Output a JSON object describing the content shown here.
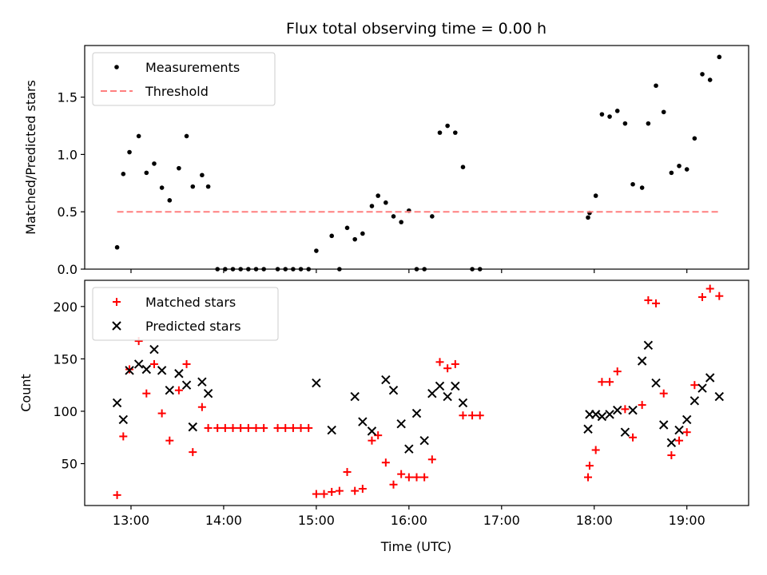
{
  "chart_data": [
    {
      "type": "scatter",
      "title": "Flux total observing time = 0.00 h",
      "xlabel": "",
      "ylabel": "Matched/Predicted stars",
      "xlim": [
        "12:30",
        "19:40"
      ],
      "ylim": [
        0,
        1.95
      ],
      "x_ticks": [
        "13:00",
        "14:00",
        "15:00",
        "16:00",
        "17:00",
        "18:00",
        "19:00"
      ],
      "y_ticks": [
        "0.0",
        "0.5",
        "1.0",
        "1.5"
      ],
      "legend": "upper-left",
      "grid": false,
      "series": [
        {
          "name": "Measurements",
          "marker": "dot",
          "color": "#000000",
          "points": [
            [
              "12:51",
              0.19
            ],
            [
              "12:55",
              0.83
            ],
            [
              "12:59",
              1.02
            ],
            [
              "13:05",
              1.16
            ],
            [
              "13:10",
              0.84
            ],
            [
              "13:15",
              0.92
            ],
            [
              "13:20",
              0.71
            ],
            [
              "13:25",
              0.6
            ],
            [
              "13:31",
              0.88
            ],
            [
              "13:36",
              1.16
            ],
            [
              "13:40",
              0.72
            ],
            [
              "13:46",
              0.82
            ],
            [
              "13:50",
              0.72
            ],
            [
              "13:56",
              0.0
            ],
            [
              "14:01",
              0.0
            ],
            [
              "14:06",
              0.0
            ],
            [
              "14:11",
              0.0
            ],
            [
              "14:16",
              0.0
            ],
            [
              "14:21",
              0.0
            ],
            [
              "14:26",
              0.0
            ],
            [
              "14:35",
              0.0
            ],
            [
              "14:40",
              0.0
            ],
            [
              "14:45",
              0.0
            ],
            [
              "14:50",
              0.0
            ],
            [
              "14:55",
              0.0
            ],
            [
              "15:00",
              0.16
            ],
            [
              "15:10",
              0.29
            ],
            [
              "15:15",
              0.0
            ],
            [
              "15:20",
              0.36
            ],
            [
              "15:25",
              0.26
            ],
            [
              "15:30",
              0.31
            ],
            [
              "15:36",
              0.55
            ],
            [
              "15:40",
              0.64
            ],
            [
              "15:45",
              0.58
            ],
            [
              "15:50",
              0.46
            ],
            [
              "15:55",
              0.41
            ],
            [
              "16:00",
              0.51
            ],
            [
              "16:05",
              0.0
            ],
            [
              "16:10",
              0.0
            ],
            [
              "16:15",
              0.46
            ],
            [
              "16:20",
              1.19
            ],
            [
              "16:25",
              1.25
            ],
            [
              "16:30",
              1.19
            ],
            [
              "16:35",
              0.89
            ],
            [
              "16:41",
              0.0
            ],
            [
              "16:46",
              0.0
            ],
            [
              "17:56",
              0.45
            ],
            [
              "17:57",
              0.49
            ],
            [
              "18:01",
              0.64
            ],
            [
              "18:05",
              1.35
            ],
            [
              "18:10",
              1.33
            ],
            [
              "18:15",
              1.38
            ],
            [
              "18:20",
              1.27
            ],
            [
              "18:25",
              0.74
            ],
            [
              "18:31",
              0.71
            ],
            [
              "18:35",
              1.27
            ],
            [
              "18:40",
              1.6
            ],
            [
              "18:45",
              1.37
            ],
            [
              "18:50",
              0.84
            ],
            [
              "18:55",
              0.9
            ],
            [
              "19:00",
              0.87
            ],
            [
              "19:05",
              1.14
            ],
            [
              "19:10",
              1.7
            ],
            [
              "19:15",
              1.65
            ],
            [
              "19:21",
              1.85
            ]
          ]
        },
        {
          "name": "Threshold",
          "marker": "dashed-line",
          "color": "#ff7f7f",
          "points": [
            [
              "12:51",
              0.5
            ],
            [
              "19:21",
              0.5
            ]
          ]
        }
      ]
    },
    {
      "type": "scatter",
      "title": "",
      "xlabel": "Time (UTC)",
      "ylabel": "Count",
      "xlim": [
        "12:30",
        "19:40"
      ],
      "ylim": [
        10,
        225
      ],
      "x_ticks": [
        "13:00",
        "14:00",
        "15:00",
        "16:00",
        "17:00",
        "18:00",
        "19:00"
      ],
      "y_ticks": [
        "50",
        "100",
        "150",
        "200"
      ],
      "legend": "upper-left",
      "grid": false,
      "series": [
        {
          "name": "Matched stars",
          "marker": "plus",
          "color": "#ff0000",
          "points": [
            [
              "12:51",
              20
            ],
            [
              "12:55",
              76
            ],
            [
              "12:59",
              140
            ],
            [
              "13:05",
              167
            ],
            [
              "13:10",
              117
            ],
            [
              "13:15",
              145
            ],
            [
              "13:20",
              98
            ],
            [
              "13:25",
              72
            ],
            [
              "13:31",
              120
            ],
            [
              "13:36",
              145
            ],
            [
              "13:40",
              61
            ],
            [
              "13:46",
              104
            ],
            [
              "13:50",
              84
            ],
            [
              "13:56",
              84
            ],
            [
              "14:01",
              84
            ],
            [
              "14:06",
              84
            ],
            [
              "14:11",
              84
            ],
            [
              "14:16",
              84
            ],
            [
              "14:21",
              84
            ],
            [
              "14:26",
              84
            ],
            [
              "14:35",
              84
            ],
            [
              "14:40",
              84
            ],
            [
              "14:45",
              84
            ],
            [
              "14:50",
              84
            ],
            [
              "14:55",
              84
            ],
            [
              "15:00",
              21
            ],
            [
              "15:05",
              21
            ],
            [
              "15:10",
              23
            ],
            [
              "15:15",
              24
            ],
            [
              "15:20",
              42
            ],
            [
              "15:25",
              24
            ],
            [
              "15:30",
              26
            ],
            [
              "15:36",
              72
            ],
            [
              "15:40",
              77
            ],
            [
              "15:45",
              51
            ],
            [
              "15:50",
              30
            ],
            [
              "15:55",
              40
            ],
            [
              "16:00",
              37
            ],
            [
              "16:05",
              37
            ],
            [
              "16:10",
              37
            ],
            [
              "16:15",
              54
            ],
            [
              "16:20",
              147
            ],
            [
              "16:25",
              141
            ],
            [
              "16:30",
              145
            ],
            [
              "16:35",
              96
            ],
            [
              "16:41",
              96
            ],
            [
              "16:46",
              96
            ],
            [
              "17:56",
              37
            ],
            [
              "17:57",
              48
            ],
            [
              "18:01",
              63
            ],
            [
              "18:05",
              128
            ],
            [
              "18:10",
              128
            ],
            [
              "18:15",
              138
            ],
            [
              "18:20",
              102
            ],
            [
              "18:25",
              75
            ],
            [
              "18:31",
              106
            ],
            [
              "18:35",
              206
            ],
            [
              "18:40",
              203
            ],
            [
              "18:45",
              117
            ],
            [
              "18:50",
              58
            ],
            [
              "18:55",
              72
            ],
            [
              "19:00",
              80
            ],
            [
              "19:05",
              125
            ],
            [
              "19:10",
              209
            ],
            [
              "19:15",
              217
            ],
            [
              "19:21",
              210
            ]
          ]
        },
        {
          "name": "Predicted stars",
          "marker": "x",
          "color": "#000000",
          "points": [
            [
              "12:51",
              108
            ],
            [
              "12:55",
              92
            ],
            [
              "12:59",
              139
            ],
            [
              "13:05",
              145
            ],
            [
              "13:10",
              140
            ],
            [
              "13:15",
              159
            ],
            [
              "13:20",
              139
            ],
            [
              "13:25",
              120
            ],
            [
              "13:31",
              136
            ],
            [
              "13:36",
              125
            ],
            [
              "13:40",
              85
            ],
            [
              "13:46",
              128
            ],
            [
              "13:50",
              117
            ],
            [
              "15:00",
              127
            ],
            [
              "15:10",
              82
            ],
            [
              "15:25",
              114
            ],
            [
              "15:30",
              90
            ],
            [
              "15:36",
              81
            ],
            [
              "15:45",
              130
            ],
            [
              "15:50",
              120
            ],
            [
              "15:55",
              88
            ],
            [
              "16:00",
              64
            ],
            [
              "16:05",
              98
            ],
            [
              "16:10",
              72
            ],
            [
              "16:15",
              117
            ],
            [
              "16:20",
              124
            ],
            [
              "16:25",
              114
            ],
            [
              "16:30",
              124
            ],
            [
              "16:35",
              108
            ],
            [
              "17:56",
              83
            ],
            [
              "17:57",
              97
            ],
            [
              "18:01",
              97
            ],
            [
              "18:05",
              95
            ],
            [
              "18:10",
              97
            ],
            [
              "18:15",
              101
            ],
            [
              "18:20",
              80
            ],
            [
              "18:25",
              101
            ],
            [
              "18:31",
              148
            ],
            [
              "18:35",
              163
            ],
            [
              "18:40",
              127
            ],
            [
              "18:45",
              87
            ],
            [
              "18:50",
              70
            ],
            [
              "18:55",
              82
            ],
            [
              "19:00",
              92
            ],
            [
              "19:05",
              110
            ],
            [
              "19:10",
              122
            ],
            [
              "19:15",
              132
            ],
            [
              "19:21",
              114
            ]
          ]
        }
      ]
    }
  ]
}
